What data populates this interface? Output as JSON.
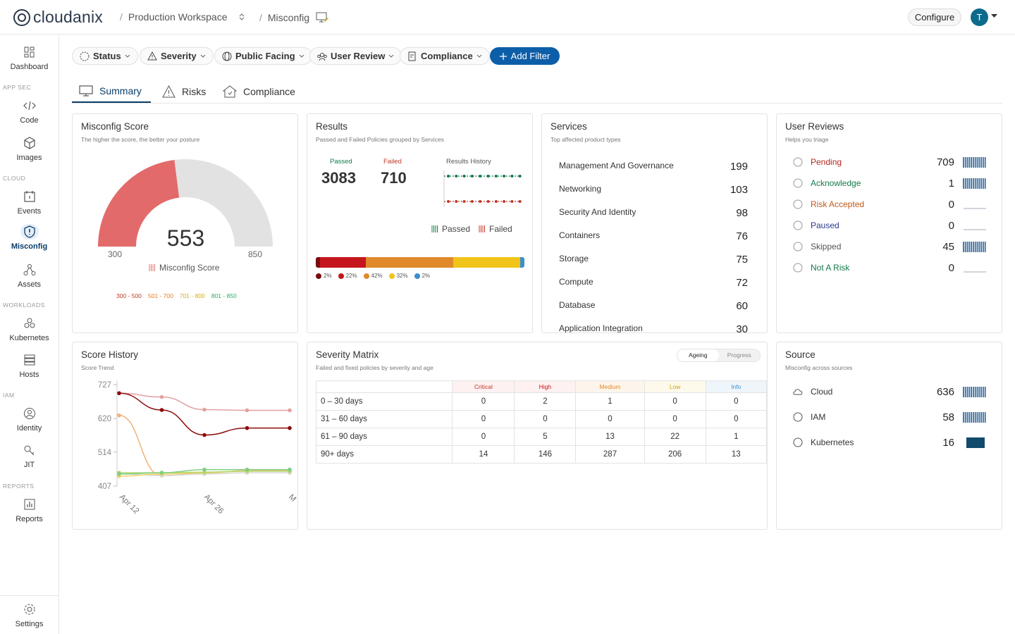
{
  "app": {
    "name": "cloudanix"
  },
  "breadcrumb": {
    "workspace": "Production Workspace",
    "page": "Misconfig"
  },
  "header": {
    "configure_label": "Configure",
    "avatar_initial": "T"
  },
  "sidebar": {
    "sections": {
      "app_sec": "APP SEC",
      "cloud": "CLOUD",
      "workloads": "WORKLOADS",
      "iam": "IAM",
      "reports": "REPORTS"
    },
    "items": [
      {
        "label": "Dashboard",
        "icon": "dashboard-icon"
      },
      {
        "label": "Code",
        "icon": "code-icon"
      },
      {
        "label": "Images",
        "icon": "cube-icon"
      },
      {
        "label": "Events",
        "icon": "calendar-icon"
      },
      {
        "label": "Misconfig",
        "icon": "shield-icon",
        "active": true
      },
      {
        "label": "Assets",
        "icon": "assets-icon"
      },
      {
        "label": "Kubernetes",
        "icon": "kubernetes-icon"
      },
      {
        "label": "Hosts",
        "icon": "server-icon"
      },
      {
        "label": "Identity",
        "icon": "user-icon"
      },
      {
        "label": "JIT",
        "icon": "key-icon"
      },
      {
        "label": "Reports",
        "icon": "chart-icon"
      },
      {
        "label": "Settings",
        "icon": "gear-icon"
      }
    ]
  },
  "filters": {
    "status": "Status",
    "severity": "Severity",
    "public_facing": "Public Facing",
    "user_review": "User Review",
    "compliance": "Compliance",
    "add_filter": "Add Filter"
  },
  "tabs": {
    "summary": "Summary",
    "risks": "Risks",
    "compliance": "Compliance"
  },
  "misconfig_score": {
    "title": "Misconfig Score",
    "subtitle": "The higher the score, the better your posture",
    "score": 553,
    "min": "300",
    "max": "850",
    "legend": "Misconfig Score",
    "ranges": [
      {
        "label": "300 - 500",
        "color": "#c0392b"
      },
      {
        "label": "501 - 700",
        "color": "#e67e22"
      },
      {
        "label": "701 - 800",
        "color": "#d4ac0d"
      },
      {
        "label": "801 - 850",
        "color": "#27ae60"
      }
    ]
  },
  "results": {
    "title": "Results",
    "subtitle": "Passed and Failed Policies grouped by Services",
    "passed_label": "Passed",
    "passed": "3083",
    "failed_label": "Failed",
    "failed": "710",
    "history_label": "Results History",
    "legend_passed": "Passed",
    "legend_failed": "Failed",
    "severity_breakdown": [
      {
        "label": "2%",
        "value": 2,
        "color": "#7b0c0c"
      },
      {
        "label": "22%",
        "value": 22,
        "color": "#c4161c"
      },
      {
        "label": "42%",
        "value": 42,
        "color": "#e08a2c"
      },
      {
        "label": "32%",
        "value": 32,
        "color": "#f0c419"
      },
      {
        "label": "2%",
        "value": 2,
        "color": "#3a8fd1"
      }
    ]
  },
  "services": {
    "title": "Services",
    "subtitle": "Top affected product types",
    "rows": [
      {
        "name": "Management And Governance",
        "value": "199"
      },
      {
        "name": "Networking",
        "value": "103"
      },
      {
        "name": "Security And Identity",
        "value": "98"
      },
      {
        "name": "Containers",
        "value": "76"
      },
      {
        "name": "Storage",
        "value": "75"
      },
      {
        "name": "Compute",
        "value": "72"
      },
      {
        "name": "Database",
        "value": "60"
      },
      {
        "name": "Application Integration",
        "value": "30"
      }
    ]
  },
  "user_reviews": {
    "title": "User Reviews",
    "subtitle": "Helps you triage",
    "rows": [
      {
        "name": "Pending",
        "value": "709",
        "color": "#b3261e",
        "icon": "pending-icon"
      },
      {
        "name": "Acknowledge",
        "value": "1",
        "color": "#137a4a",
        "icon": "check-icon"
      },
      {
        "name": "Risk Accepted",
        "value": "0",
        "color": "#c0581b",
        "icon": "risk-icon"
      },
      {
        "name": "Paused",
        "value": "0",
        "color": "#2b3a8c",
        "icon": "pause-icon"
      },
      {
        "name": "Skipped",
        "value": "45",
        "color": "#555555",
        "icon": "skip-icon"
      },
      {
        "name": "Not A Risk",
        "value": "0",
        "color": "#137a4a",
        "icon": "not-equal-icon"
      }
    ]
  },
  "score_history": {
    "title": "Score History",
    "subtitle": "Score Trend"
  },
  "chart_data": {
    "type": "line",
    "ylim": [
      407,
      727
    ],
    "yticks": [
      "727",
      "620",
      "514",
      "407"
    ],
    "xticks": [
      "Apr 12",
      "Apr 26",
      "M"
    ],
    "series": [
      {
        "color": "#e4a0a0",
        "values": [
          700,
          688,
          648,
          646,
          646
        ]
      },
      {
        "color": "#8b0a0a",
        "values": [
          700,
          647,
          568,
          590,
          590
        ]
      },
      {
        "color": "#f0b27a",
        "values": [
          630,
          440,
          448,
          456,
          456
        ]
      },
      {
        "color": "#d6d6d6",
        "values": [
          445,
          440,
          445,
          449,
          449
        ]
      },
      {
        "color": "#f1d36b",
        "values": [
          438,
          445,
          449,
          454,
          454
        ]
      },
      {
        "color": "#b2d86b",
        "values": [
          449,
          449,
          451,
          454,
          454
        ]
      },
      {
        "color": "#7fcf7f",
        "values": [
          445,
          449,
          459,
          459,
          459
        ]
      }
    ]
  },
  "severity_matrix": {
    "title": "Severity Matrix",
    "subtitle": "Failed and fixed policies by severity and age",
    "toggle": {
      "ageing": "Ageing",
      "progress": "Progress"
    },
    "headers": [
      "Critical",
      "High",
      "Medium",
      "Low",
      "Info"
    ],
    "rows": [
      {
        "label": "0 – 30 days",
        "values": [
          "0",
          "2",
          "1",
          "0",
          "0"
        ]
      },
      {
        "label": "31 – 60 days",
        "values": [
          "0",
          "0",
          "0",
          "0",
          "0"
        ]
      },
      {
        "label": "61 – 90 days",
        "values": [
          "0",
          "5",
          "13",
          "22",
          "1"
        ]
      },
      {
        "label": "90+ days",
        "values": [
          "14",
          "146",
          "287",
          "206",
          "13"
        ]
      }
    ]
  },
  "source": {
    "title": "Source",
    "subtitle": "Misconfig across sources",
    "rows": [
      {
        "name": "Cloud",
        "value": "636",
        "icon": "cloud-icon"
      },
      {
        "name": "IAM",
        "value": "58",
        "icon": "fingerprint-icon"
      },
      {
        "name": "Kubernetes",
        "value": "16",
        "icon": "helm-icon"
      }
    ]
  }
}
